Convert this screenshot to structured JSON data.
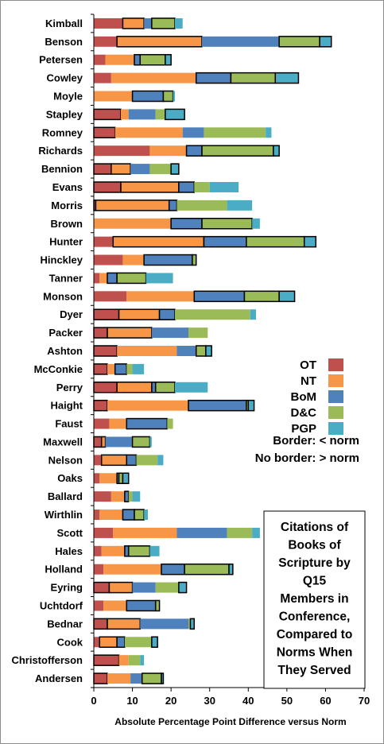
{
  "chart_data": {
    "type": "bar",
    "orientation": "horizontal",
    "stacked": true,
    "title_lines": [
      "Citations of",
      "Books of",
      "Scripture by",
      "Q15",
      "Members in",
      "Conference,",
      "Compared to",
      "Norms When",
      "They Served"
    ],
    "xlabel": "Absolute Percentage Point Difference versus Norm",
    "ylabel": "",
    "xlim": [
      0,
      70
    ],
    "xticks": [
      "0",
      "10",
      "20",
      "30",
      "40",
      "50",
      "60",
      "70"
    ],
    "grid": false,
    "legend": {
      "position": "right-middle"
    },
    "border_notes": [
      "Border:  <  norm",
      "No border:  >  norm"
    ],
    "series": [
      {
        "name": "OT",
        "color": "#C0504D"
      },
      {
        "name": "NT",
        "color": "#F79646"
      },
      {
        "name": "BoM",
        "color": "#4F81BD"
      },
      {
        "name": "D&C",
        "color": "#9BBB59"
      },
      {
        "name": "PGP",
        "color": "#4BACC6"
      }
    ],
    "categories": [
      "Kimball",
      "Benson",
      "Petersen",
      "Cowley",
      "Moyle",
      "Stapley",
      "Romney",
      "Richards",
      "Bennion",
      "Evans",
      "Morris",
      "Brown",
      "Hunter",
      "Hinckley",
      "Tanner",
      "Monson",
      "Dyer",
      "Packer",
      "Ashton",
      "McConkie",
      "Perry",
      "Haight",
      "Faust",
      "Maxwell",
      "Nelson",
      "Oaks",
      "Ballard",
      "Wirthlin",
      "Scott",
      "Hales",
      "Holland",
      "Eyring",
      "Uchtdorf",
      "Bednar",
      "Cook",
      "Christofferson",
      "Andersen"
    ],
    "rows": [
      {
        "name": "Kimball",
        "values": [
          7.5,
          5.5,
          2,
          6,
          2
        ],
        "below_norm": [
          false,
          true,
          false,
          true,
          false
        ]
      },
      {
        "name": "Benson",
        "values": [
          6,
          22,
          20,
          10.5,
          3
        ],
        "below_norm": [
          false,
          true,
          false,
          true,
          true
        ]
      },
      {
        "name": "Petersen",
        "values": [
          3,
          7.5,
          1.5,
          6.5,
          1.5
        ],
        "below_norm": [
          false,
          false,
          true,
          true,
          true
        ]
      },
      {
        "name": "Cowley",
        "values": [
          4.5,
          22,
          9,
          11.5,
          6
        ],
        "below_norm": [
          false,
          false,
          true,
          true,
          true
        ]
      },
      {
        "name": "Moyle",
        "values": [
          0,
          10,
          8,
          2.5,
          0.5
        ],
        "below_norm": [
          false,
          false,
          true,
          true,
          false
        ]
      },
      {
        "name": "Stapley",
        "values": [
          7,
          2,
          7,
          2.5,
          5
        ],
        "below_norm": [
          true,
          false,
          false,
          false,
          true
        ]
      },
      {
        "name": "Romney",
        "values": [
          5.5,
          17.5,
          5.5,
          16,
          1.5
        ],
        "below_norm": [
          true,
          false,
          false,
          false,
          false
        ]
      },
      {
        "name": "Richards",
        "values": [
          14.5,
          9.5,
          4,
          18.5,
          1.5
        ],
        "below_norm": [
          false,
          false,
          true,
          true,
          true
        ]
      },
      {
        "name": "Bennion",
        "values": [
          4.5,
          5,
          5,
          5.5,
          2
        ],
        "below_norm": [
          true,
          true,
          false,
          false,
          true
        ]
      },
      {
        "name": "Evans",
        "values": [
          7,
          15,
          4,
          4,
          7.5
        ],
        "below_norm": [
          true,
          true,
          true,
          false,
          false
        ]
      },
      {
        "name": "Morris",
        "values": [
          0.5,
          19,
          2,
          13,
          6.5
        ],
        "below_norm": [
          true,
          true,
          true,
          false,
          false
        ]
      },
      {
        "name": "Brown",
        "values": [
          0,
          20,
          8,
          13,
          2
        ],
        "below_norm": [
          false,
          false,
          true,
          true,
          false
        ]
      },
      {
        "name": "Hunter",
        "values": [
          5,
          23.5,
          11,
          15,
          3
        ],
        "below_norm": [
          false,
          true,
          true,
          true,
          true
        ]
      },
      {
        "name": "Hinckley",
        "values": [
          7.5,
          5.5,
          12.5,
          1,
          0
        ],
        "below_norm": [
          false,
          false,
          true,
          true,
          false
        ]
      },
      {
        "name": "Tanner",
        "values": [
          1.5,
          2,
          2.5,
          7.5,
          7
        ],
        "below_norm": [
          false,
          false,
          true,
          true,
          false
        ]
      },
      {
        "name": "Monson",
        "values": [
          8.5,
          17.5,
          13,
          9,
          4
        ],
        "below_norm": [
          false,
          false,
          true,
          true,
          true
        ]
      },
      {
        "name": "Dyer",
        "values": [
          6.5,
          10.5,
          4,
          19.5,
          1.5
        ],
        "below_norm": [
          true,
          true,
          true,
          false,
          false
        ]
      },
      {
        "name": "Packer",
        "values": [
          3.5,
          11.5,
          9.5,
          5,
          0
        ],
        "below_norm": [
          true,
          true,
          false,
          false,
          false
        ]
      },
      {
        "name": "Ashton",
        "values": [
          6,
          15.5,
          5,
          2.5,
          1.5
        ],
        "below_norm": [
          true,
          false,
          false,
          true,
          true
        ]
      },
      {
        "name": "McConkie",
        "values": [
          3.5,
          2,
          3,
          1.5,
          3
        ],
        "below_norm": [
          true,
          false,
          true,
          false,
          false
        ]
      },
      {
        "name": "Perry",
        "values": [
          6,
          9,
          1,
          5,
          8.5
        ],
        "below_norm": [
          true,
          true,
          true,
          true,
          false
        ]
      },
      {
        "name": "Haight",
        "values": [
          3.5,
          21,
          15,
          0.5,
          1.5
        ],
        "below_norm": [
          true,
          false,
          true,
          true,
          true
        ]
      },
      {
        "name": "Faust",
        "values": [
          4,
          4.5,
          10.5,
          1.5,
          0
        ],
        "below_norm": [
          false,
          false,
          true,
          false,
          false
        ]
      },
      {
        "name": "Maxwell",
        "values": [
          2,
          1,
          7,
          4.5,
          0.5
        ],
        "below_norm": [
          true,
          true,
          false,
          true,
          false
        ]
      },
      {
        "name": "Nelson",
        "values": [
          2,
          6.5,
          2.5,
          5.5,
          1.5
        ],
        "below_norm": [
          false,
          true,
          true,
          false,
          false
        ]
      },
      {
        "name": "Oaks",
        "values": [
          1.5,
          4.5,
          0.5,
          1,
          1.5
        ],
        "below_norm": [
          false,
          false,
          true,
          true,
          true
        ]
      },
      {
        "name": "Ballard",
        "values": [
          4.5,
          3.5,
          1,
          1,
          2
        ],
        "below_norm": [
          false,
          false,
          true,
          false,
          false
        ]
      },
      {
        "name": "Wirthlin",
        "values": [
          1.5,
          6,
          3,
          2.5,
          1
        ],
        "below_norm": [
          false,
          false,
          true,
          true,
          false
        ]
      },
      {
        "name": "Scott",
        "values": [
          5,
          16.5,
          13,
          6.5,
          2
        ],
        "below_norm": [
          false,
          false,
          false,
          false,
          false
        ]
      },
      {
        "name": "Hales",
        "values": [
          2,
          6,
          1,
          5.5,
          2.5
        ],
        "below_norm": [
          false,
          false,
          true,
          true,
          false
        ]
      },
      {
        "name": "Holland",
        "values": [
          2.5,
          15,
          6,
          11.5,
          1
        ],
        "below_norm": [
          false,
          false,
          true,
          true,
          true
        ]
      },
      {
        "name": "Eyring",
        "values": [
          4,
          6,
          6,
          6,
          2
        ],
        "below_norm": [
          true,
          true,
          false,
          false,
          true
        ]
      },
      {
        "name": "Uchtdorf",
        "values": [
          2.5,
          6,
          7.5,
          1,
          0
        ],
        "below_norm": [
          false,
          false,
          true,
          true,
          false
        ]
      },
      {
        "name": "Bednar",
        "values": [
          3.5,
          8.5,
          12.5,
          0.5,
          1
        ],
        "below_norm": [
          true,
          true,
          false,
          false,
          true
        ]
      },
      {
        "name": "Cook",
        "values": [
          1.5,
          4.5,
          2,
          7,
          1.5
        ],
        "below_norm": [
          false,
          true,
          true,
          false,
          true
        ]
      },
      {
        "name": "Christofferson",
        "values": [
          6.5,
          2.5,
          0,
          3,
          1
        ],
        "below_norm": [
          true,
          false,
          false,
          false,
          false
        ]
      },
      {
        "name": "Andersen",
        "values": [
          3.5,
          6,
          3,
          5,
          0.5
        ],
        "below_norm": [
          true,
          false,
          false,
          true,
          true
        ]
      }
    ]
  }
}
